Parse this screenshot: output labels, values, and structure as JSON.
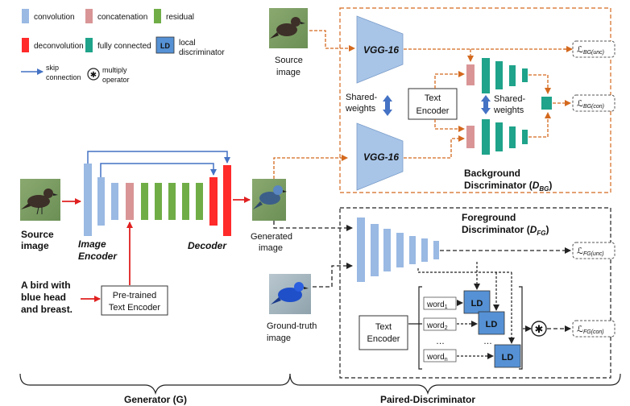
{
  "legend": {
    "convolution": "convolution",
    "concatenation": "concatenation",
    "residual": "residual",
    "deconvolution": "deconvolution",
    "fully_connected": "fully connected",
    "ld_badge": "LD",
    "local_discriminator": [
      "local",
      "discriminator"
    ],
    "skip_connection": [
      "skip",
      "connection"
    ],
    "multiply_operator": [
      "multiply",
      "operator"
    ]
  },
  "colors": {
    "convolution": "#9ab9e3",
    "concatenation": "#d99596",
    "residual": "#70ad47",
    "deconvolution": "#ff2a2a",
    "fully_connected": "#1fa38a",
    "ld": "#5591d4",
    "bg_dash": "#e07a33",
    "skip": "#4472c4"
  },
  "generator": {
    "source_image": [
      "Source",
      "image"
    ],
    "image_encoder": [
      "Image",
      "Encoder"
    ],
    "decoder": "Decoder",
    "generated_image": [
      "Generated",
      "image"
    ],
    "caption": [
      "A bird with",
      "blue head",
      "and breast."
    ],
    "text_encoder": [
      "Pre-trained",
      "Text Encoder"
    ],
    "label": "Generator (G)"
  },
  "background": {
    "source_image": [
      "Source",
      "image"
    ],
    "vgg_top": "VGG-16",
    "vgg_bottom": "VGG-16",
    "shared_left": [
      "Shared-",
      "weights"
    ],
    "text_encoder": [
      "Text",
      "Encoder"
    ],
    "shared_right": [
      "Shared-",
      "weights"
    ],
    "title": [
      "Background",
      "Discriminator ("
    ],
    "d_sym": "D",
    "d_sub": "BG",
    "close": ")",
    "loss_unc": "ℒ",
    "loss_unc_sub": "BG(unc)",
    "loss_con": "ℒ",
    "loss_con_sub": "BG(con)"
  },
  "foreground": {
    "title": [
      "Foreground",
      "Discriminator ("
    ],
    "d_sym": "D",
    "d_sub": "FG",
    "close": ")",
    "ground_truth": [
      "Ground-truth",
      "image"
    ],
    "text_encoder": [
      "Text",
      "Encoder"
    ],
    "word1": "word",
    "word1_sub": "1",
    "word2": "word",
    "word2_sub": "2",
    "dots": "…",
    "wordn": "word",
    "wordn_sub": "n",
    "ld": "LD",
    "multiply_symbol": "✱",
    "loss_unc": "ℒ",
    "loss_unc_sub": "FG(unc)",
    "loss_con": "ℒ",
    "loss_con_sub": "FG(con)",
    "label": "Paired-Discriminator"
  }
}
